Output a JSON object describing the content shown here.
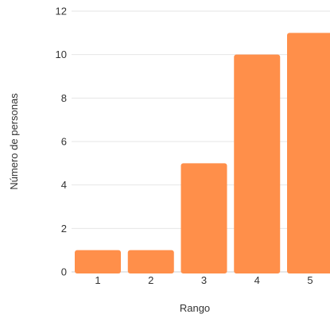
{
  "chart_data": {
    "type": "bar",
    "categories": [
      "1",
      "2",
      "3",
      "4",
      "5"
    ],
    "values": [
      1,
      1,
      5,
      10,
      11
    ],
    "xlabel": "Rango",
    "ylabel": "Número de personas",
    "ylim": [
      0,
      12
    ],
    "yticks": [
      0,
      2,
      4,
      6,
      8,
      10,
      12
    ],
    "grid": true,
    "colors": {
      "bar": "#ff8f4a"
    }
  }
}
